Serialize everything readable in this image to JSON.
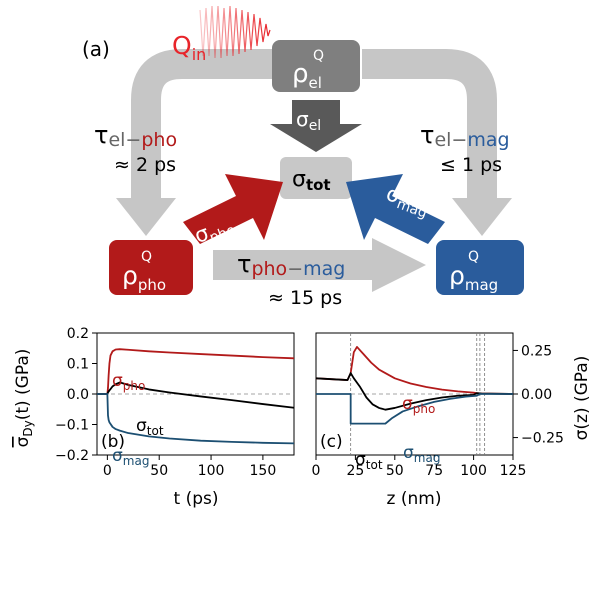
{
  "panel_a": {
    "label": "(a)",
    "q_in": {
      "base": "Q",
      "sub": "in"
    },
    "boxes": {
      "el": {
        "base": "ρ",
        "sup": "Q",
        "sub": "el"
      },
      "pho": {
        "base": "ρ",
        "sup": "Q",
        "sub": "pho"
      },
      "mag": {
        "base": "ρ",
        "sup": "Q",
        "sub": "mag"
      },
      "tot": {
        "base": "σ",
        "sub": "tot"
      }
    },
    "arrows": {
      "sigma_el": {
        "base": "σ",
        "sub": "el"
      },
      "sigma_pho": {
        "base": "σ",
        "sub": "pho"
      },
      "sigma_mag": {
        "base": "σ",
        "sub": "mag"
      }
    },
    "times": {
      "el_pho": {
        "tau": "τ",
        "a": "el",
        "dash": "−",
        "b": "pho",
        "value": "≈ 2 ps"
      },
      "el_mag": {
        "tau": "τ",
        "a": "el",
        "dash": "−",
        "b": "mag",
        "value": "≤ 1 ps"
      },
      "pho_mag": {
        "tau": "τ",
        "a": "pho",
        "dash": "−",
        "b": "mag",
        "value": "≈ 15 ps"
      }
    },
    "colors": {
      "pho": "#b21a1a",
      "mag": "#2a5c9c",
      "el": "#7f7f7f",
      "tot": "#c8c8c8",
      "flow": "#c6c6c6",
      "q_in": "#e8242a"
    }
  },
  "chart_data": [
    {
      "type": "line",
      "panel": "(b)",
      "xlabel": "t (ps)",
      "ylabel": {
        "base": "σ",
        "sub": "Dy",
        "rest": "(t) (GPa)"
      },
      "xlim": [
        -10,
        180
      ],
      "ylim": [
        -0.2,
        0.2
      ],
      "xticks": [
        0,
        50,
        100,
        150
      ],
      "yticks": [
        -0.2,
        -0.1,
        0.0,
        0.1,
        0.2
      ],
      "ytick_labels": [
        "−0.2",
        "−0.1",
        "0.0",
        "0.1",
        "0.2"
      ],
      "zero_line": true,
      "series": [
        {
          "name": "pho",
          "color": "#b21a1a",
          "x": [
            -10,
            0,
            0.6,
            1.2,
            2,
            3,
            5,
            8,
            12,
            20,
            40,
            60,
            90,
            120,
            150,
            180
          ],
          "y": [
            0,
            0,
            0.02,
            0.06,
            0.1,
            0.126,
            0.14,
            0.146,
            0.147,
            0.145,
            0.14,
            0.136,
            0.131,
            0.126,
            0.121,
            0.117
          ]
        },
        {
          "name": "tot",
          "color": "#000000",
          "x": [
            -10,
            0,
            0.6,
            1.2,
            2,
            3,
            5,
            8,
            12,
            20,
            40,
            60,
            90,
            120,
            150,
            180
          ],
          "y": [
            0,
            0,
            0.005,
            0.008,
            0.012,
            0.016,
            0.025,
            0.032,
            0.038,
            0.03,
            0.015,
            0.005,
            -0.008,
            -0.02,
            -0.033,
            -0.045
          ]
        },
        {
          "name": "mag",
          "color": "#1c4f72",
          "x": [
            -10,
            0,
            0.6,
            1.2,
            2,
            3,
            5,
            8,
            12,
            20,
            40,
            60,
            90,
            120,
            150,
            180
          ],
          "y": [
            0,
            0,
            -0.07,
            -0.085,
            -0.093,
            -0.098,
            -0.108,
            -0.115,
            -0.12,
            -0.128,
            -0.139,
            -0.146,
            -0.153,
            -0.157,
            -0.16,
            -0.162
          ]
        }
      ],
      "labels": {
        "pho": {
          "base": "σ",
          "sub": "pho"
        },
        "tot": {
          "base": "σ",
          "sub": "tot"
        },
        "mag": {
          "base": "σ",
          "sub": "mag"
        }
      }
    },
    {
      "type": "line",
      "panel": "(c)",
      "xlabel": "z (nm)",
      "ylabel": "σ(z) (GPa)",
      "xlim": [
        0,
        125
      ],
      "ylim": [
        -0.35,
        0.35
      ],
      "xticks": [
        0,
        25,
        50,
        75,
        100,
        125
      ],
      "yticks": [
        -0.25,
        0.0,
        0.25
      ],
      "ytick_labels": [
        "−0.25",
        "0.00",
        "0.25"
      ],
      "vlines": [
        22,
        102,
        104,
        107
      ],
      "zero_line": true,
      "series": [
        {
          "name": "pho",
          "color": "#b21a1a",
          "x": [
            0,
            20,
            22,
            24,
            26,
            30,
            35,
            40,
            50,
            60,
            70,
            80,
            90,
            100,
            102,
            105,
            110,
            125
          ],
          "y": [
            0.09,
            0.08,
            0.12,
            0.24,
            0.27,
            0.23,
            0.18,
            0.14,
            0.09,
            0.06,
            0.04,
            0.025,
            0.015,
            0.008,
            0.005,
            0.003,
            0.002,
            0.0
          ]
        },
        {
          "name": "tot",
          "color": "#000000",
          "x": [
            0,
            20,
            22,
            24,
            28,
            32,
            36,
            40,
            44,
            50,
            60,
            70,
            80,
            90,
            100,
            102,
            105,
            110,
            125
          ],
          "y": [
            0.09,
            0.08,
            0.12,
            0.09,
            0.04,
            -0.02,
            -0.06,
            -0.08,
            -0.09,
            -0.08,
            -0.055,
            -0.035,
            -0.02,
            -0.01,
            -0.005,
            0.005,
            0.003,
            0.002,
            0.0
          ]
        },
        {
          "name": "mag",
          "color": "#1c4f72",
          "x": [
            0,
            22,
            22.01,
            44,
            48,
            55,
            65,
            75,
            85,
            95,
            102,
            104,
            125
          ],
          "y": [
            0.0,
            0.0,
            -0.17,
            -0.17,
            -0.14,
            -0.1,
            -0.07,
            -0.045,
            -0.028,
            -0.015,
            -0.01,
            0.0,
            0.0
          ]
        }
      ],
      "labels": {
        "pho": {
          "base": "σ",
          "sub": "pho"
        },
        "tot": {
          "base": "σ",
          "sub": "tot"
        },
        "mag": {
          "base": "σ",
          "sub": "mag"
        }
      }
    }
  ]
}
